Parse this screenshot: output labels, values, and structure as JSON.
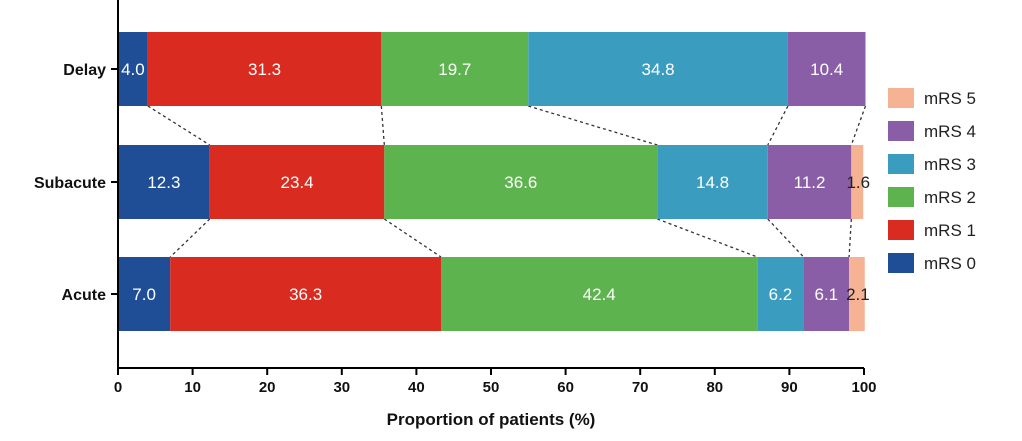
{
  "chart_data": {
    "type": "bar",
    "orientation": "horizontal",
    "stacked": true,
    "categories": [
      "Delay",
      "Subacute",
      "Acute"
    ],
    "series": [
      {
        "name": "mRS 0",
        "values": [
          4.0,
          12.3,
          7.0
        ],
        "color": "#1f4e96"
      },
      {
        "name": "mRS 1",
        "values": [
          31.3,
          23.4,
          36.3
        ],
        "color": "#d92b1f"
      },
      {
        "name": "mRS 2",
        "values": [
          19.7,
          36.6,
          42.4
        ],
        "color": "#5db34d"
      },
      {
        "name": "mRS 3",
        "values": [
          34.8,
          14.8,
          6.2
        ],
        "color": "#3a9cbf"
      },
      {
        "name": "mRS 4",
        "values": [
          10.4,
          11.2,
          6.1
        ],
        "color": "#8a5ea6"
      },
      {
        "name": "mRS 5",
        "values": [
          0,
          1.6,
          2.1
        ],
        "color": "#f5b394"
      }
    ],
    "labels": [
      [
        "4.0",
        "31.3",
        "19.7",
        "34.8",
        "10.4",
        ""
      ],
      [
        "12.3",
        "23.4",
        "36.6",
        "14.8",
        "11.2",
        "1.6"
      ],
      [
        "7.0",
        "36.3",
        "42.4",
        "6.2",
        "6.1",
        "2.1"
      ]
    ],
    "xlabel": "Proportion of patients (%)",
    "ylabel": "",
    "xlim": [
      0,
      100
    ],
    "xticks": [
      0,
      10,
      20,
      30,
      40,
      50,
      60,
      70,
      80,
      90,
      100
    ],
    "legend_order": [
      "mRS 5",
      "mRS 4",
      "mRS 3",
      "mRS 2",
      "mRS 1",
      "mRS 0"
    ],
    "legend_position": "right",
    "connector_lines": true,
    "grid": false
  }
}
